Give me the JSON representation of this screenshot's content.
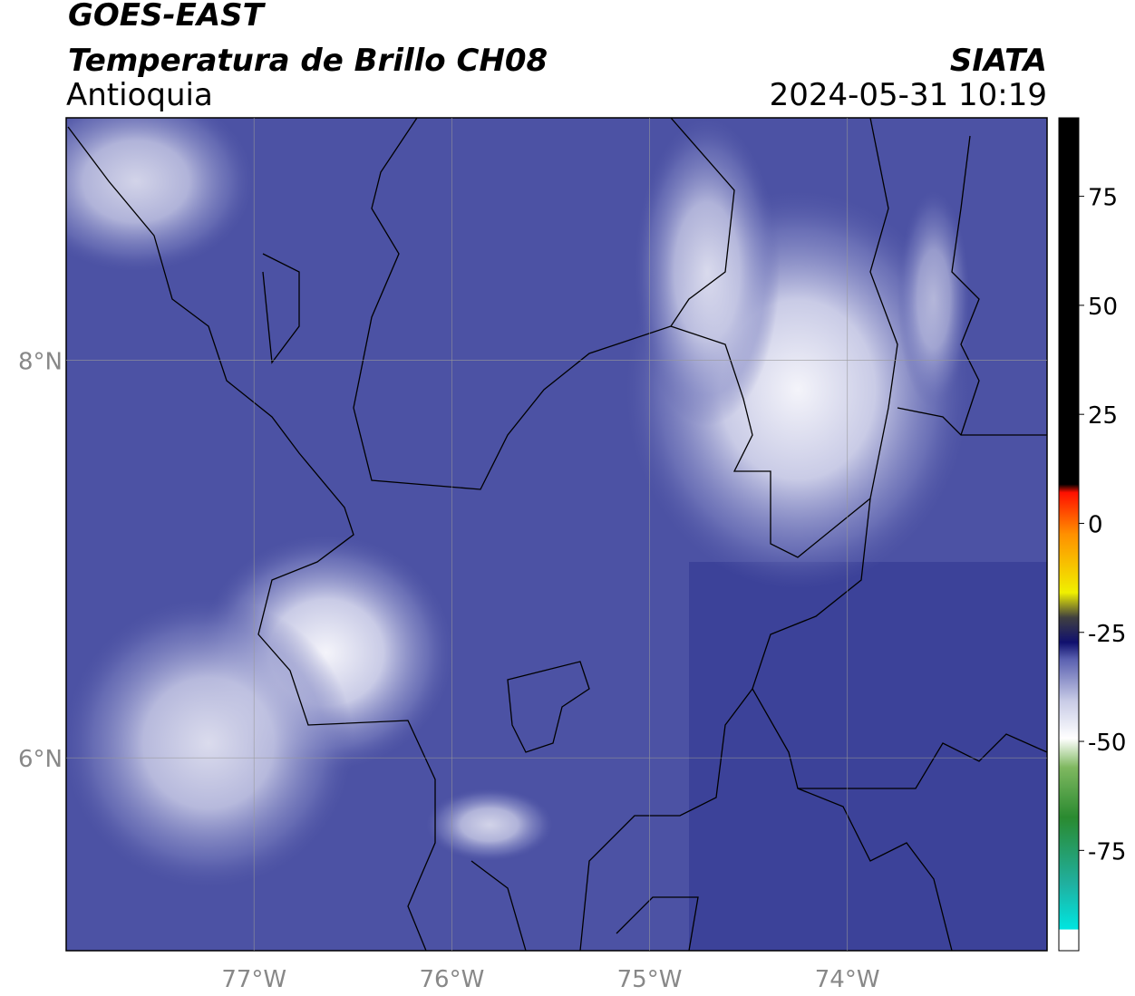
{
  "header": {
    "satellite": "GOES-EAST",
    "product": "Temperatura de Brillo CH08",
    "region": "Antioquia",
    "source": "SIATA",
    "datetime": "2024-05-31 10:19"
  },
  "map": {
    "lonlim": [
      -77.95,
      -72.99
    ],
    "latlim": [
      5.03,
      9.22
    ],
    "lonticks": [
      {
        "value": -77,
        "label": "77°W"
      },
      {
        "value": -76,
        "label": "76°W"
      },
      {
        "value": -75,
        "label": "75°W"
      },
      {
        "value": -74,
        "label": "74°W"
      }
    ],
    "latticks": [
      {
        "value": 8,
        "label": "8°N"
      },
      {
        "value": 6,
        "label": "6°N"
      }
    ],
    "grid": true
  },
  "colorbar": {
    "lim": [
      -98,
      93
    ],
    "ticks": [
      75,
      50,
      25,
      0,
      -25,
      -50,
      -75
    ]
  }
}
